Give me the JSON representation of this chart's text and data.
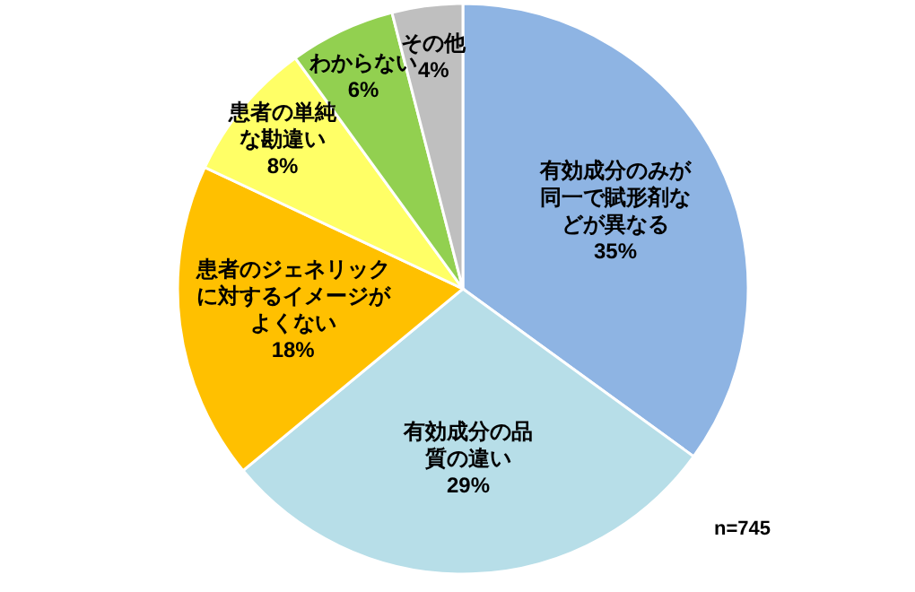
{
  "chart_data": {
    "type": "pie",
    "categories": [
      "有効成分のみが同一で賦形剤などが異なる",
      "有効成分の品質の違い",
      "患者のジェネリックに対するイメージがよくない",
      "患者の単純な勘違い",
      "わからない",
      "その他"
    ],
    "values": [
      35,
      29,
      18,
      8,
      6,
      4
    ],
    "value_labels": [
      "35%",
      "29%",
      "18%",
      "8%",
      "6%",
      "4%"
    ],
    "colors": [
      "#8eb4e3",
      "#b7dee8",
      "#ffc000",
      "#ffff66",
      "#92d050",
      "#bfbfbf"
    ],
    "annotations": [
      "n=745"
    ]
  }
}
